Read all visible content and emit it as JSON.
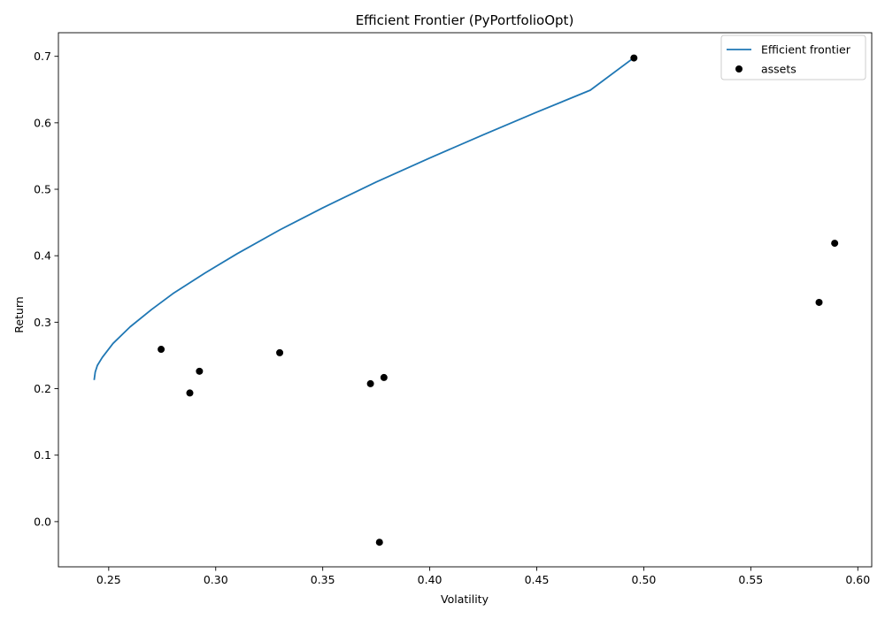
{
  "chart_data": {
    "type": "scatter",
    "title": "Efficient Frontier (PyPortfolioOpt)",
    "xlabel": "Volatility",
    "ylabel": "Return",
    "xlim": [
      0.2265,
      0.6065
    ],
    "ylim": [
      -0.068,
      0.7355
    ],
    "xticks": [
      0.25,
      0.3,
      0.35,
      0.4,
      0.45,
      0.5,
      0.55,
      0.6
    ],
    "xtick_labels": [
      "0.25",
      "0.30",
      "0.35",
      "0.40",
      "0.45",
      "0.50",
      "0.55",
      "0.60"
    ],
    "yticks": [
      0.0,
      0.1,
      0.2,
      0.3,
      0.4,
      0.5,
      0.6,
      0.7
    ],
    "ytick_labels": [
      "0.0",
      "0.1",
      "0.2",
      "0.3",
      "0.4",
      "0.5",
      "0.6",
      "0.7"
    ],
    "grid": false,
    "legend_position": "top-right",
    "series": [
      {
        "name": "Efficient frontier",
        "kind": "line",
        "color": "#1f77b4",
        "points": [
          [
            0.2432,
            0.213
          ],
          [
            0.2437,
            0.225
          ],
          [
            0.2447,
            0.235
          ],
          [
            0.247,
            0.247
          ],
          [
            0.252,
            0.268
          ],
          [
            0.26,
            0.293
          ],
          [
            0.27,
            0.319
          ],
          [
            0.28,
            0.343
          ],
          [
            0.295,
            0.374
          ],
          [
            0.31,
            0.403
          ],
          [
            0.33,
            0.439
          ],
          [
            0.35,
            0.472
          ],
          [
            0.375,
            0.511
          ],
          [
            0.4,
            0.547
          ],
          [
            0.425,
            0.582
          ],
          [
            0.45,
            0.616
          ],
          [
            0.475,
            0.649
          ],
          [
            0.495,
            0.697
          ]
        ]
      },
      {
        "name": "assets",
        "kind": "scatter",
        "color": "#000000",
        "points": [
          [
            0.4954,
            0.6975
          ],
          [
            0.5892,
            0.4188
          ],
          [
            0.5819,
            0.3298
          ],
          [
            0.2745,
            0.2592
          ],
          [
            0.3299,
            0.2541
          ],
          [
            0.2924,
            0.2262
          ],
          [
            0.3786,
            0.2168
          ],
          [
            0.3723,
            0.2075
          ],
          [
            0.2879,
            0.1935
          ],
          [
            0.3765,
            -0.031
          ]
        ]
      }
    ]
  }
}
